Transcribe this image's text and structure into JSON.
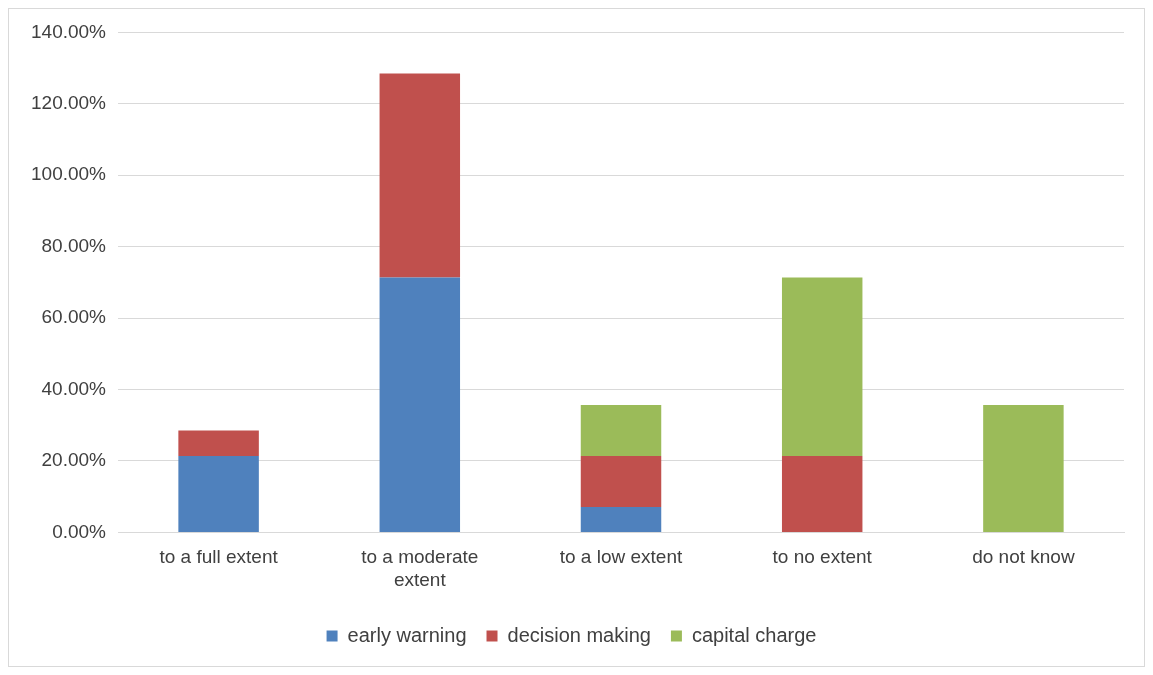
{
  "chart_data": {
    "type": "bar",
    "stacked": true,
    "categories": [
      "to a full extent",
      "to a moderate extent",
      "to a low extent",
      "to no extent",
      "do not know"
    ],
    "series": [
      {
        "name": "early warning",
        "color": "#4f81bd",
        "values": [
          21.4,
          71.4,
          7.1,
          null,
          null
        ]
      },
      {
        "name": "decision making",
        "color": "#c0504d",
        "values": [
          7.1,
          57.1,
          14.3,
          21.4,
          null
        ]
      },
      {
        "name": "capital charge",
        "color": "#9bbb59",
        "values": [
          null,
          null,
          14.3,
          50,
          35.7
        ]
      }
    ],
    "ylim": [
      0,
      140
    ],
    "yticks": [
      {
        "value": 0,
        "label": "0.00%"
      },
      {
        "value": 20,
        "label": "20.00%"
      },
      {
        "value": 40,
        "label": "40.00%"
      },
      {
        "value": 60,
        "label": "60.00%"
      },
      {
        "value": 80,
        "label": "80.00%"
      },
      {
        "value": 100,
        "label": "100.00%"
      },
      {
        "value": 120,
        "label": "120.00%"
      },
      {
        "value": 140,
        "label": "140.00%"
      }
    ],
    "grid": "y",
    "legend": "bottom"
  }
}
